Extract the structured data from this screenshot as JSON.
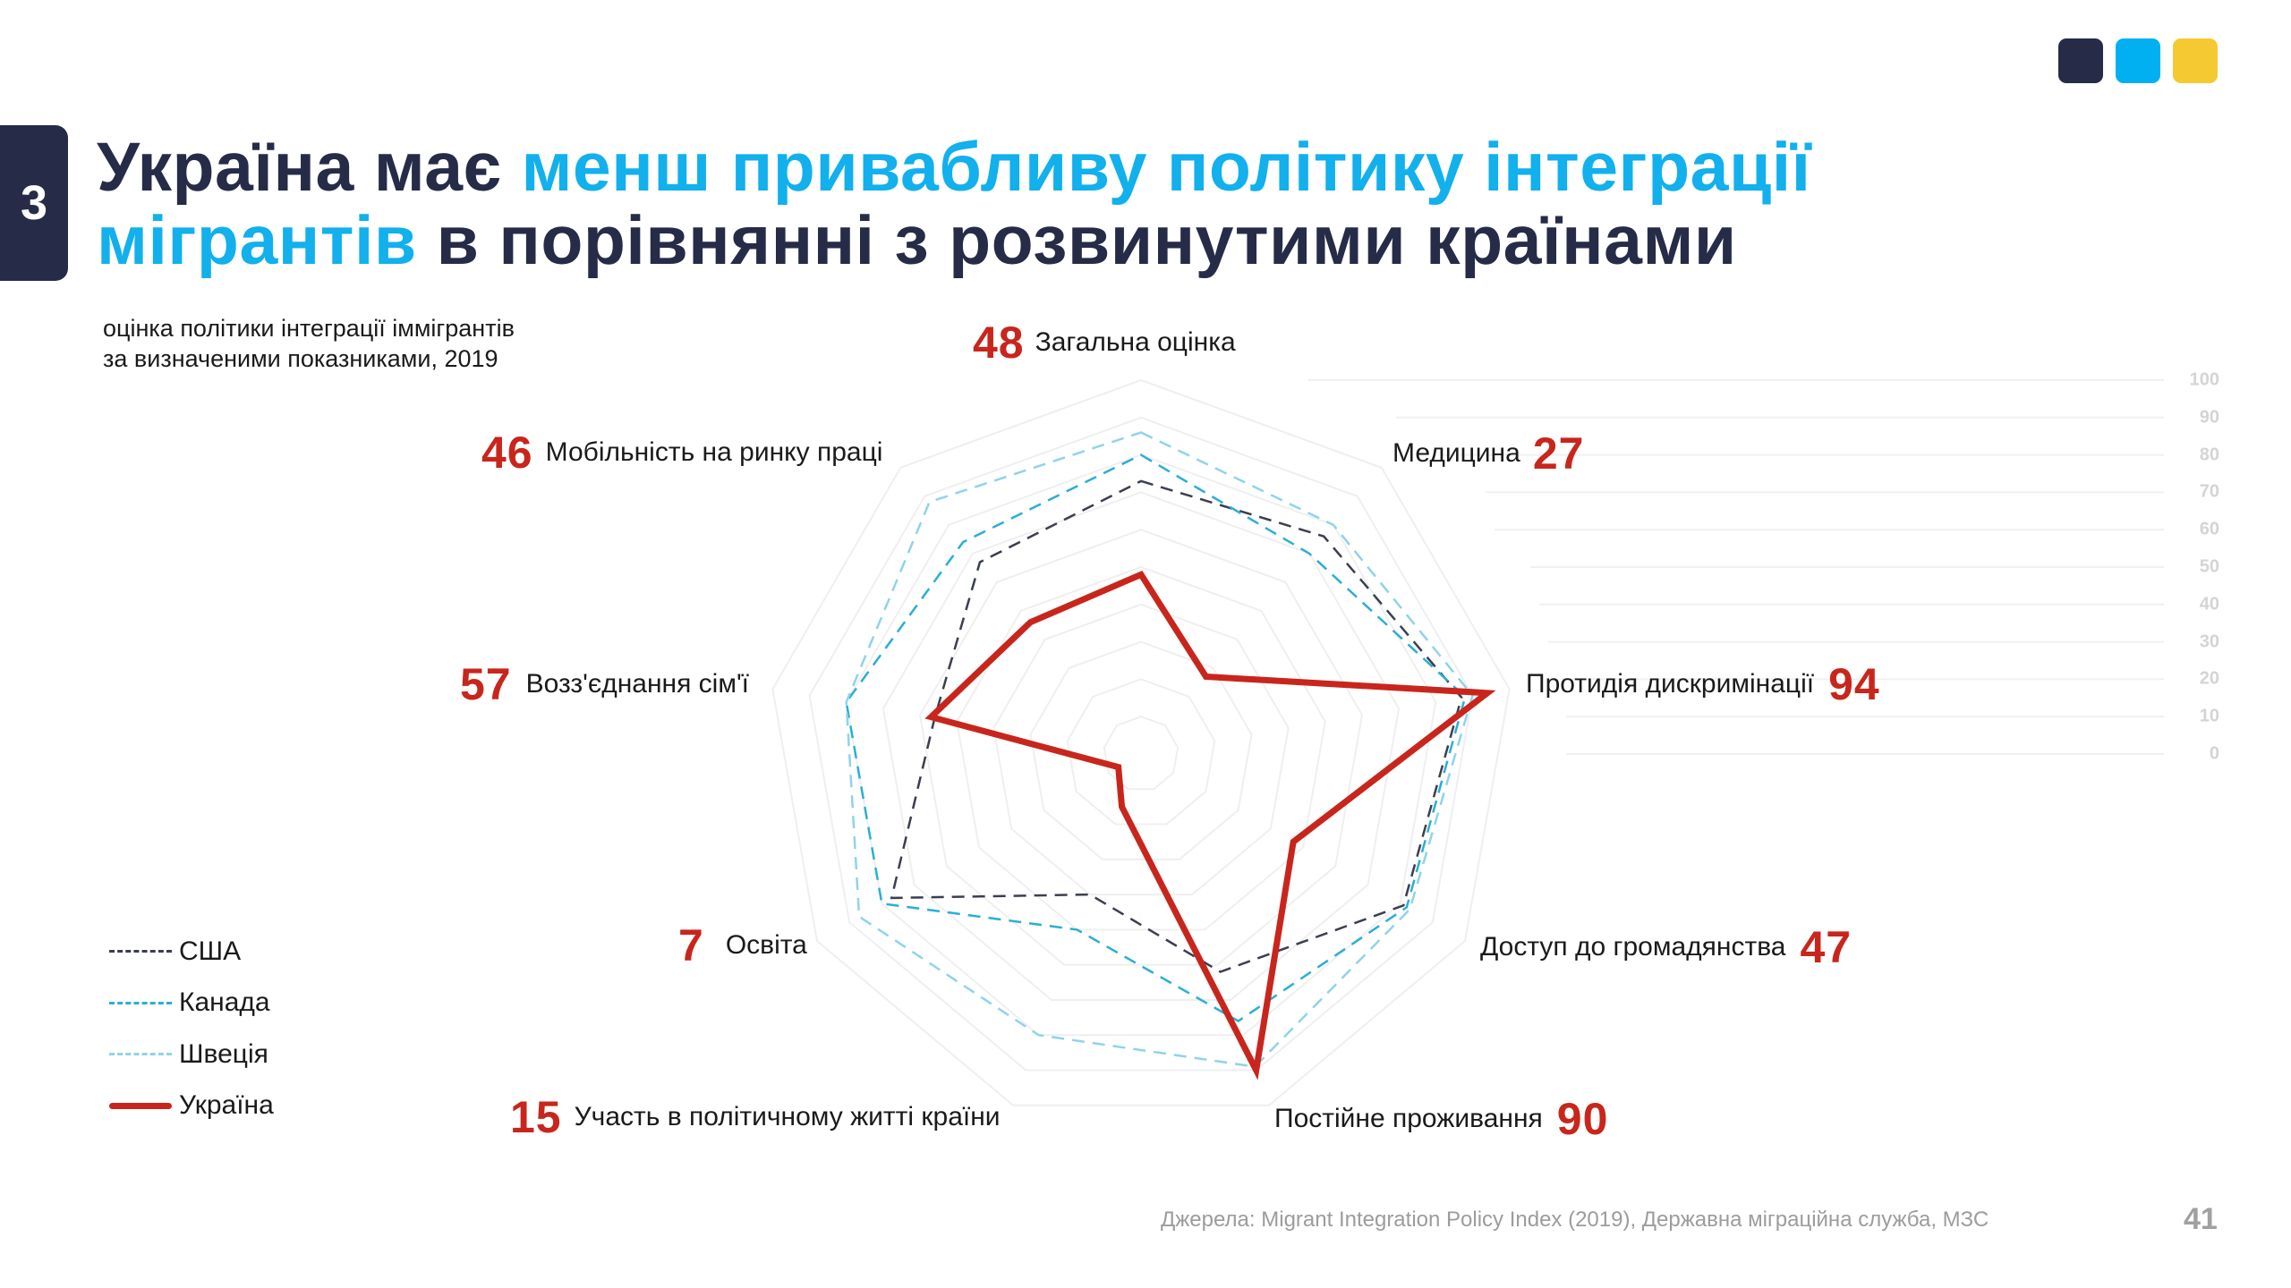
{
  "brand_colors": [
    "#262c47",
    "#00b0f0",
    "#f5c932"
  ],
  "section_number": "3",
  "title": {
    "part1": "Україна має ",
    "highlight1": "менш привабливу політику інтеграції",
    "highlight2": "мігрантів",
    "part2": " в порівнянні з розвинутими країнами"
  },
  "subtitle_line1": "оцінка політики інтеграції іммігрантів",
  "subtitle_line2": "за визначеними показниками, 2019",
  "footer": "Джерела: Migrant Integration Policy Index (2019), Державна міграційна служба, МЗС",
  "page_number": "41",
  "chart_data": {
    "type": "radar",
    "title": "оцінка політики інтеграції іммігрантів за визначеними показниками, 2019",
    "axes": [
      "Загальна оцінка",
      "Медицина",
      "Протидія дискримінації",
      "Доступ до громадянства",
      "Постійне проживання",
      "Участь в політичному житті країни",
      "Освіта",
      "Возз'єднання сім'ї",
      "Мобільність на ринку праці"
    ],
    "axis_values_ukraine": [
      "48",
      "27",
      "94",
      "47",
      "90",
      "15",
      "7",
      "57",
      "46"
    ],
    "range": [
      0,
      100
    ],
    "scale_ticks": [
      "100",
      "90",
      "80",
      "70",
      "60",
      "50",
      "40",
      "30",
      "20",
      "10",
      "0"
    ],
    "series": [
      {
        "name": "США",
        "color": "#3a3f4f",
        "style": "dashed",
        "values": [
          73,
          76,
          87,
          81,
          62,
          40,
          77,
          56,
          67
        ]
      },
      {
        "name": "Канада",
        "color": "#2aaed6",
        "style": "dashed",
        "values": [
          80,
          70,
          88,
          82,
          76,
          50,
          80,
          80,
          74
        ]
      },
      {
        "name": "Швеція",
        "color": "#8fd3ea",
        "style": "dashed",
        "values": [
          86,
          80,
          90,
          83,
          89,
          80,
          87,
          80,
          88
        ]
      },
      {
        "name": "Україна",
        "color": "#c8261c",
        "style": "solid",
        "values": [
          48,
          27,
          94,
          47,
          90,
          15,
          7,
          57,
          46
        ]
      }
    ],
    "legend_position": "bottom-left"
  }
}
